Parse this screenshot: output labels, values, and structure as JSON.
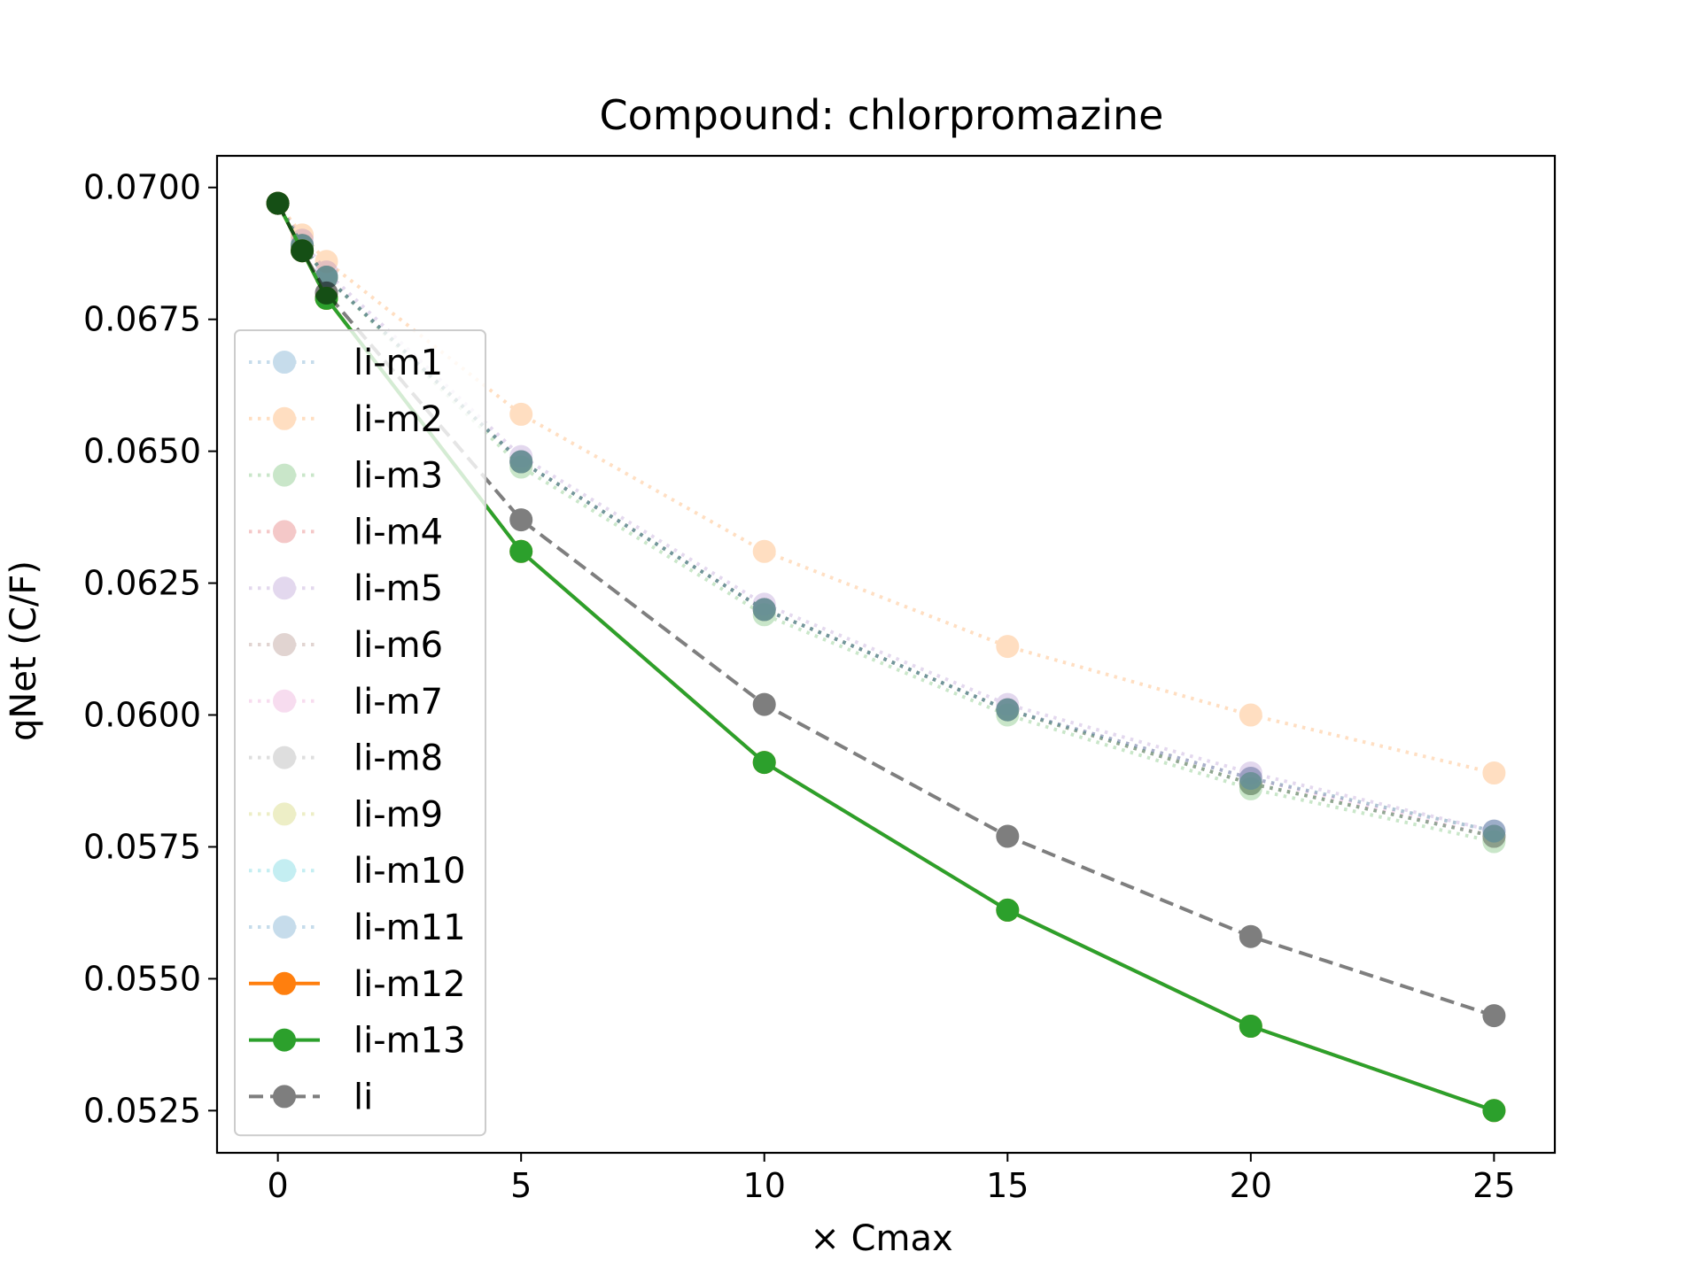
{
  "chart_data": {
    "type": "line",
    "title": "Compound: chlorpromazine",
    "xlabel": "× Cmax",
    "ylabel": "qNet (C/F)",
    "xlim": [
      -1.25,
      26.25
    ],
    "ylim": [
      0.0517,
      0.0706
    ],
    "xticks": [
      0,
      5,
      10,
      15,
      20,
      25
    ],
    "xtick_labels": [
      "0",
      "5",
      "10",
      "15",
      "20",
      "25"
    ],
    "yticks": [
      0.0525,
      0.055,
      0.0575,
      0.06,
      0.0625,
      0.065,
      0.0675,
      0.07
    ],
    "ytick_labels": [
      "0.0525",
      "0.0550",
      "0.0575",
      "0.0600",
      "0.0625",
      "0.0650",
      "0.0675",
      "0.0700"
    ],
    "grid": false,
    "legend_position": "center-left",
    "x": [
      0,
      0.5,
      1,
      5,
      10,
      15,
      20,
      25
    ],
    "series": [
      {
        "name": "li-m1",
        "color": "#1f77b4",
        "linestyle": "dotted",
        "alpha": 0.25,
        "values": [
          0.0697,
          0.0689,
          0.0683,
          0.0648,
          0.062,
          0.0601,
          0.0587,
          0.0577
        ]
      },
      {
        "name": "li-m2",
        "color": "#ff7f0e",
        "linestyle": "dotted",
        "alpha": 0.25,
        "values": [
          0.0697,
          0.0691,
          0.0686,
          0.0657,
          0.0631,
          0.0613,
          0.06,
          0.0589
        ]
      },
      {
        "name": "li-m3",
        "color": "#2ca02c",
        "linestyle": "dotted",
        "alpha": 0.25,
        "values": [
          0.0697,
          0.0689,
          0.0683,
          0.0647,
          0.0619,
          0.06,
          0.0586,
          0.0576
        ]
      },
      {
        "name": "li-m4",
        "color": "#d62728",
        "linestyle": "dotted",
        "alpha": 0.25,
        "values": [
          0.0697,
          0.0689,
          0.0683,
          0.0648,
          0.062,
          0.0601,
          0.0587,
          0.0577
        ]
      },
      {
        "name": "li-m5",
        "color": "#9467bd",
        "linestyle": "dotted",
        "alpha": 0.25,
        "values": [
          0.0697,
          0.069,
          0.0684,
          0.0649,
          0.0621,
          0.0602,
          0.0589,
          0.0578
        ]
      },
      {
        "name": "li-m6",
        "color": "#8c564b",
        "linestyle": "dotted",
        "alpha": 0.25,
        "values": [
          0.0697,
          0.0689,
          0.0683,
          0.0648,
          0.062,
          0.0601,
          0.0587,
          0.0577
        ]
      },
      {
        "name": "li-m7",
        "color": "#e377c2",
        "linestyle": "dotted",
        "alpha": 0.25,
        "values": [
          0.0697,
          0.0689,
          0.0683,
          0.0648,
          0.062,
          0.0601,
          0.0588,
          0.0577
        ]
      },
      {
        "name": "li-m8",
        "color": "#7f7f7f",
        "linestyle": "dotted",
        "alpha": 0.25,
        "values": [
          0.0697,
          0.0689,
          0.0683,
          0.0648,
          0.062,
          0.0601,
          0.0588,
          0.0578
        ]
      },
      {
        "name": "li-m9",
        "color": "#bcbd22",
        "linestyle": "dotted",
        "alpha": 0.25,
        "values": [
          0.0697,
          0.0689,
          0.0683,
          0.0648,
          0.062,
          0.0601,
          0.0587,
          0.0577
        ]
      },
      {
        "name": "li-m10",
        "color": "#17becf",
        "linestyle": "dotted",
        "alpha": 0.25,
        "values": [
          0.0697,
          0.0689,
          0.0683,
          0.0648,
          0.062,
          0.0601,
          0.0587,
          0.0577
        ]
      },
      {
        "name": "li-m11",
        "color": "#1f77b4",
        "linestyle": "dotted",
        "alpha": 0.25,
        "values": [
          0.0697,
          0.0689,
          0.0683,
          0.0648,
          0.062,
          0.0601,
          0.0588,
          0.0578
        ]
      },
      {
        "name": "li-m12",
        "color": "#ff7f0e",
        "linestyle": "solid",
        "alpha": 1.0,
        "values": [
          0.0697,
          0.0688,
          0.0679,
          0.0631,
          0.0591,
          0.0563,
          0.0541,
          0.0525
        ]
      },
      {
        "name": "li-m13",
        "color": "#2ca02c",
        "linestyle": "solid",
        "alpha": 1.0,
        "values": [
          0.0697,
          0.0688,
          0.0679,
          0.0631,
          0.0591,
          0.0563,
          0.0541,
          0.0525
        ]
      },
      {
        "name": "li",
        "color": "#000000",
        "linestyle": "dashed",
        "alpha": 0.5,
        "values": [
          0.0697,
          0.0688,
          0.068,
          0.0637,
          0.0602,
          0.0577,
          0.0558,
          0.0543
        ]
      }
    ]
  }
}
